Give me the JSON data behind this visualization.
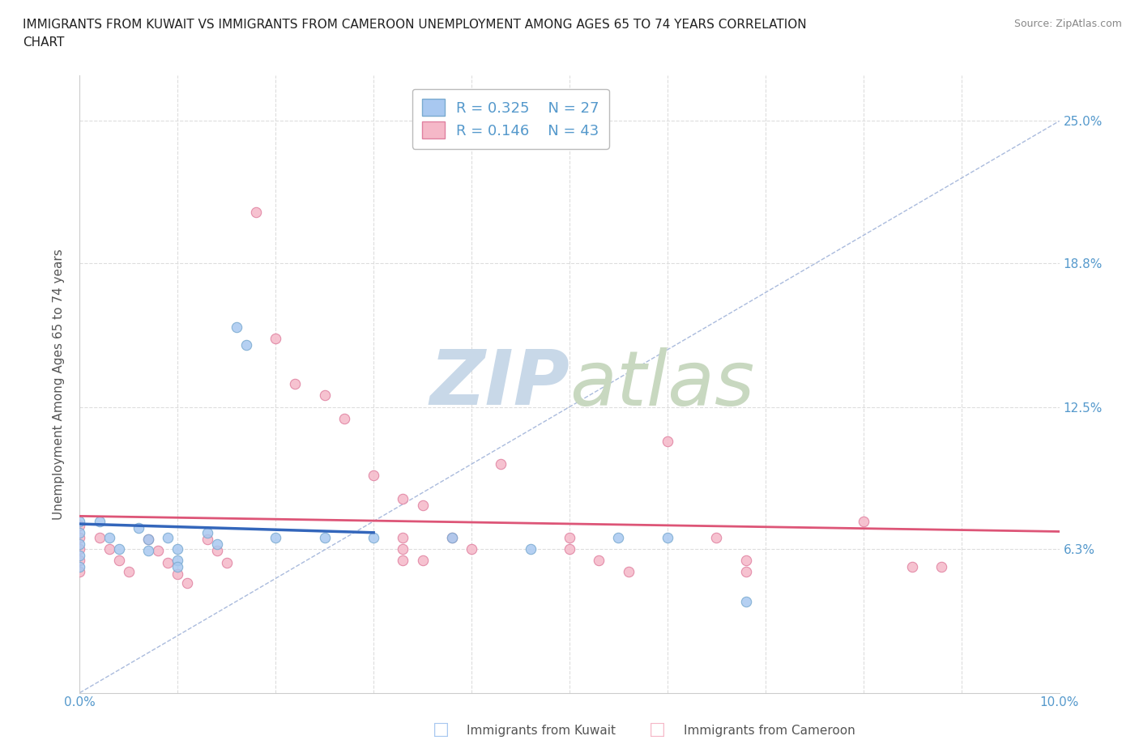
{
  "title_line1": "IMMIGRANTS FROM KUWAIT VS IMMIGRANTS FROM CAMEROON UNEMPLOYMENT AMONG AGES 65 TO 74 YEARS CORRELATION",
  "title_line2": "CHART",
  "source": "Source: ZipAtlas.com",
  "ylabel": "Unemployment Among Ages 65 to 74 years",
  "xlim": [
    0.0,
    0.1
  ],
  "ylim": [
    0.0,
    0.27
  ],
  "yticks": [
    0.0,
    0.063,
    0.125,
    0.188,
    0.25
  ],
  "ytick_labels_right": [
    "",
    "6.3%",
    "12.5%",
    "18.8%",
    "25.0%"
  ],
  "xticks": [
    0.0,
    0.01,
    0.02,
    0.03,
    0.04,
    0.05,
    0.06,
    0.07,
    0.08,
    0.09,
    0.1
  ],
  "xtick_labels": [
    "0.0%",
    "",
    "",
    "",
    "",
    "",
    "",
    "",
    "",
    "",
    "10.0%"
  ],
  "kuwait_color": "#a8c8f0",
  "kuwait_edge_color": "#7aaad0",
  "cameroon_color": "#f5b8c8",
  "cameroon_edge_color": "#e080a0",
  "kuwait_line_color": "#3366bb",
  "cameroon_line_color": "#dd5577",
  "diagonal_color": "#aabbdd",
  "watermark_color_zip": "#c8d8e8",
  "watermark_color_atlas": "#c8d8c0",
  "kuwait_R": 0.325,
  "kuwait_N": 27,
  "cameroon_R": 0.146,
  "cameroon_N": 43,
  "kuwait_scatter": [
    [
      0.0,
      0.075
    ],
    [
      0.0,
      0.07
    ],
    [
      0.0,
      0.065
    ],
    [
      0.0,
      0.06
    ],
    [
      0.0,
      0.055
    ],
    [
      0.002,
      0.075
    ],
    [
      0.003,
      0.068
    ],
    [
      0.004,
      0.063
    ],
    [
      0.006,
      0.072
    ],
    [
      0.007,
      0.067
    ],
    [
      0.007,
      0.062
    ],
    [
      0.009,
      0.068
    ],
    [
      0.01,
      0.063
    ],
    [
      0.01,
      0.058
    ],
    [
      0.013,
      0.07
    ],
    [
      0.014,
      0.065
    ],
    [
      0.016,
      0.16
    ],
    [
      0.017,
      0.152
    ],
    [
      0.02,
      0.068
    ],
    [
      0.025,
      0.068
    ],
    [
      0.03,
      0.068
    ],
    [
      0.038,
      0.068
    ],
    [
      0.046,
      0.063
    ],
    [
      0.055,
      0.068
    ],
    [
      0.06,
      0.068
    ],
    [
      0.068,
      0.04
    ],
    [
      0.01,
      0.055
    ]
  ],
  "cameroon_scatter": [
    [
      0.0,
      0.073
    ],
    [
      0.0,
      0.068
    ],
    [
      0.0,
      0.063
    ],
    [
      0.0,
      0.058
    ],
    [
      0.0,
      0.053
    ],
    [
      0.002,
      0.068
    ],
    [
      0.003,
      0.063
    ],
    [
      0.004,
      0.058
    ],
    [
      0.005,
      0.053
    ],
    [
      0.007,
      0.067
    ],
    [
      0.008,
      0.062
    ],
    [
      0.009,
      0.057
    ],
    [
      0.01,
      0.052
    ],
    [
      0.011,
      0.048
    ],
    [
      0.013,
      0.067
    ],
    [
      0.014,
      0.062
    ],
    [
      0.015,
      0.057
    ],
    [
      0.018,
      0.21
    ],
    [
      0.02,
      0.155
    ],
    [
      0.022,
      0.135
    ],
    [
      0.025,
      0.13
    ],
    [
      0.027,
      0.12
    ],
    [
      0.03,
      0.095
    ],
    [
      0.033,
      0.085
    ],
    [
      0.035,
      0.082
    ],
    [
      0.038,
      0.068
    ],
    [
      0.04,
      0.063
    ],
    [
      0.043,
      0.1
    ],
    [
      0.05,
      0.068
    ],
    [
      0.05,
      0.063
    ],
    [
      0.053,
      0.058
    ],
    [
      0.056,
      0.053
    ],
    [
      0.06,
      0.11
    ],
    [
      0.065,
      0.068
    ],
    [
      0.068,
      0.058
    ],
    [
      0.068,
      0.053
    ],
    [
      0.08,
      0.075
    ],
    [
      0.085,
      0.055
    ],
    [
      0.088,
      0.055
    ],
    [
      0.033,
      0.063
    ],
    [
      0.033,
      0.058
    ],
    [
      0.033,
      0.068
    ],
    [
      0.035,
      0.058
    ]
  ],
  "background_color": "#ffffff",
  "grid_color": "#dddddd",
  "grid_style": "--",
  "marker_size": 80
}
